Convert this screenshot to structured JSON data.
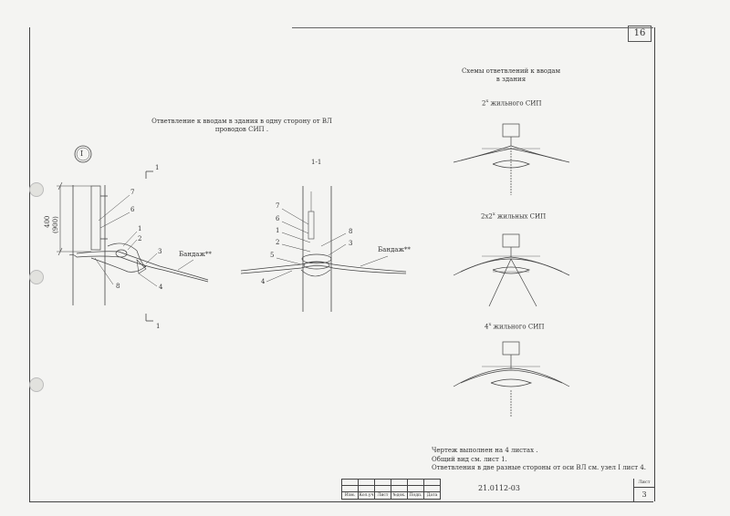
{
  "page_number": "16",
  "left_drawing": {
    "title_line1": "Ответвление к вводам в здания в одну сторону от ВЛ",
    "title_line2": "проводов СИП .",
    "node_id": "I",
    "dimension_main": "400",
    "dimension_alt": "(900)",
    "section_mark_top": "1",
    "section_mark_bottom": "1",
    "callouts": [
      "7",
      "6",
      "1",
      "2",
      "3",
      "4",
      "8"
    ],
    "bandage_label": "Бандаж**"
  },
  "section_drawing": {
    "title": "1-1",
    "callouts": [
      "7",
      "6",
      "1",
      "2",
      "5",
      "4",
      "8",
      "3"
    ],
    "bandage_label": "Бандаж**"
  },
  "right_schemes": {
    "title_line1": "Схемы ответвлений к вводам",
    "title_line2": "в здания",
    "scheme1_label": "2",
    "scheme1_sup": "x",
    "scheme1_rest": " жильного СИП",
    "scheme2_label": "2x2",
    "scheme2_sup": "x",
    "scheme2_rest": " жильных СИП",
    "scheme3_label": "4",
    "scheme3_sup": "x",
    "scheme3_rest": " жильного СИП"
  },
  "notes": [
    "Чертеж выполнен на 4 листах .",
    "Общий вид см. лист 1.",
    "Ответвления в две разные стороны от оси ВЛ см. узел I лист 4."
  ],
  "stamp": {
    "headers": [
      "Изм.",
      "Кол.уч",
      "Лист",
      "№док.",
      "Подп.",
      "Дата"
    ],
    "doc_number": "21.0112-03",
    "sheet_label": "Лист",
    "sheet_number": "3"
  }
}
